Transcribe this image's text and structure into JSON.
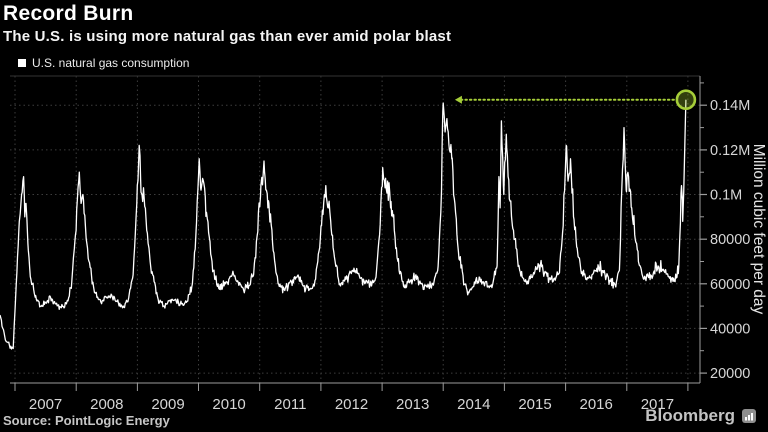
{
  "header": {
    "title": "Record Burn",
    "subtitle": "The U.S. is using more natural gas than ever amid polar blast"
  },
  "legend": {
    "label": "U.S. natural gas consumption",
    "swatch_color": "#ffffff"
  },
  "axes": {
    "y_title": "Million cubic feet per day"
  },
  "footer": {
    "source": "Source: PointLogic Energy",
    "brand": "Bloomberg"
  },
  "colors": {
    "background": "#000000",
    "line": "#ffffff",
    "grid": "#3d3d3d",
    "axis": "#9c9c9c",
    "tick_label": "#d6d6d6",
    "accent_green": "#a6ce39",
    "accent_green_fill": "rgba(160,200,45,0.32)"
  },
  "chart_data": {
    "type": "line",
    "title": "Record Burn",
    "subtitle": "The U.S. is using more natural gas than ever amid polar blast",
    "ylabel": "Million cubic feet per day",
    "grid": "dotted",
    "legend_position": "top-left",
    "x_tick_labels": [
      "2007",
      "2008",
      "2009",
      "2010",
      "2011",
      "2012",
      "2013",
      "2014",
      "2015",
      "2016",
      "2017"
    ],
    "x_year_boundaries": [
      2007,
      2008,
      2009,
      2010,
      2011,
      2012,
      2013,
      2014,
      2015,
      2016,
      2017,
      2018
    ],
    "x_domain": [
      2006.918,
      2018.197
    ],
    "y_domain": [
      15550,
      153100
    ],
    "y_ticks": [
      {
        "value": 20000,
        "label": "20000"
      },
      {
        "value": 40000,
        "label": "40000"
      },
      {
        "value": 60000,
        "label": "60000"
      },
      {
        "value": 80000,
        "label": "80000"
      },
      {
        "value": 100000,
        "label": "0.1M"
      },
      {
        "value": 120000,
        "label": "0.12M"
      },
      {
        "value": 140000,
        "label": "0.14M"
      }
    ],
    "y_minor_ticks": [
      30000,
      50000,
      70000,
      90000,
      110000,
      130000,
      150000
    ],
    "series": [
      {
        "name": "U.S. natural gas consumption",
        "color": "#ffffff",
        "seed": 11,
        "sample_step_years": 0.011,
        "anchors": [
          [
            2006.755,
            46000
          ],
          [
            2006.8,
            40000
          ],
          [
            2006.86,
            34000
          ],
          [
            2006.93,
            32000
          ],
          [
            2006.97,
            31000
          ],
          [
            2007.0,
            48000
          ],
          [
            2007.04,
            72000
          ],
          [
            2007.07,
            88000
          ],
          [
            2007.1,
            97000
          ],
          [
            2007.14,
            108000
          ],
          [
            2007.16,
            90000
          ],
          [
            2007.18,
            96000
          ],
          [
            2007.21,
            78000
          ],
          [
            2007.26,
            62000
          ],
          [
            2007.33,
            54000
          ],
          [
            2007.42,
            50000
          ],
          [
            2007.5,
            51500
          ],
          [
            2007.58,
            54000
          ],
          [
            2007.67,
            51000
          ],
          [
            2007.75,
            49500
          ],
          [
            2007.84,
            51000
          ],
          [
            2007.92,
            58000
          ],
          [
            2007.97,
            76000
          ],
          [
            2008.02,
            98000
          ],
          [
            2008.05,
            110000
          ],
          [
            2008.08,
            96000
          ],
          [
            2008.11,
            100000
          ],
          [
            2008.15,
            86000
          ],
          [
            2008.21,
            70000
          ],
          [
            2008.3,
            56000
          ],
          [
            2008.4,
            52000
          ],
          [
            2008.5,
            54000
          ],
          [
            2008.58,
            55000
          ],
          [
            2008.67,
            52000
          ],
          [
            2008.77,
            50000
          ],
          [
            2008.86,
            54000
          ],
          [
            2008.93,
            64000
          ],
          [
            2008.99,
            96000
          ],
          [
            2009.03,
            122000
          ],
          [
            2009.06,
            101000
          ],
          [
            2009.1,
            103000
          ],
          [
            2009.14,
            90000
          ],
          [
            2009.19,
            76000
          ],
          [
            2009.25,
            64000
          ],
          [
            2009.34,
            53000
          ],
          [
            2009.44,
            50000
          ],
          [
            2009.53,
            52500
          ],
          [
            2009.62,
            53000
          ],
          [
            2009.72,
            51000
          ],
          [
            2009.81,
            52000
          ],
          [
            2009.9,
            60000
          ],
          [
            2009.96,
            84000
          ],
          [
            2010.01,
            116000
          ],
          [
            2010.04,
            102000
          ],
          [
            2010.08,
            106000
          ],
          [
            2010.13,
            92000
          ],
          [
            2010.18,
            80000
          ],
          [
            2010.24,
            66000
          ],
          [
            2010.33,
            58000
          ],
          [
            2010.44,
            60000
          ],
          [
            2010.55,
            64000
          ],
          [
            2010.63,
            61000
          ],
          [
            2010.73,
            58000
          ],
          [
            2010.82,
            59000
          ],
          [
            2010.9,
            64000
          ],
          [
            2010.96,
            82000
          ],
          [
            2011.02,
            104000
          ],
          [
            2011.07,
            115000
          ],
          [
            2011.11,
            102000
          ],
          [
            2011.15,
            96000
          ],
          [
            2011.21,
            78000
          ],
          [
            2011.3,
            60000
          ],
          [
            2011.41,
            57000
          ],
          [
            2011.52,
            61000
          ],
          [
            2011.61,
            63000
          ],
          [
            2011.71,
            59000
          ],
          [
            2011.8,
            57000
          ],
          [
            2011.89,
            59000
          ],
          [
            2011.95,
            70000
          ],
          [
            2012.01,
            86000
          ],
          [
            2012.08,
            104000
          ],
          [
            2012.12,
            94000
          ],
          [
            2012.16,
            88000
          ],
          [
            2012.22,
            72000
          ],
          [
            2012.31,
            60000
          ],
          [
            2012.41,
            62000
          ],
          [
            2012.52,
            66000
          ],
          [
            2012.61,
            64500
          ],
          [
            2012.71,
            61000
          ],
          [
            2012.81,
            60000
          ],
          [
            2012.9,
            63000
          ],
          [
            2012.96,
            82000
          ],
          [
            2013.01,
            112000
          ],
          [
            2013.05,
            103000
          ],
          [
            2013.09,
            106000
          ],
          [
            2013.14,
            94000
          ],
          [
            2013.2,
            84000
          ],
          [
            2013.26,
            70000
          ],
          [
            2013.35,
            59000
          ],
          [
            2013.45,
            60500
          ],
          [
            2013.54,
            63000
          ],
          [
            2013.64,
            60000
          ],
          [
            2013.74,
            58500
          ],
          [
            2013.83,
            60000
          ],
          [
            2013.91,
            66000
          ],
          [
            2013.96,
            92000
          ],
          [
            2014.0,
            141000
          ],
          [
            2014.03,
            128000
          ],
          [
            2014.06,
            134000
          ],
          [
            2014.1,
            120000
          ],
          [
            2014.14,
            116000
          ],
          [
            2014.19,
            96000
          ],
          [
            2014.25,
            74000
          ],
          [
            2014.34,
            60000
          ],
          [
            2014.42,
            56000
          ],
          [
            2014.52,
            60000
          ],
          [
            2014.62,
            62000
          ],
          [
            2014.72,
            58500
          ],
          [
            2014.81,
            60000
          ],
          [
            2014.88,
            68000
          ],
          [
            2014.91,
            108000
          ],
          [
            2014.93,
            94000
          ],
          [
            2014.95,
            133000
          ],
          [
            2014.99,
            100000
          ],
          [
            2015.03,
            127000
          ],
          [
            2015.08,
            98000
          ],
          [
            2015.13,
            86000
          ],
          [
            2015.19,
            76000
          ],
          [
            2015.25,
            66000
          ],
          [
            2015.34,
            61000
          ],
          [
            2015.44,
            63000
          ],
          [
            2015.55,
            69000
          ],
          [
            2015.63,
            66000
          ],
          [
            2015.73,
            62000
          ],
          [
            2015.82,
            62500
          ],
          [
            2015.9,
            65000
          ],
          [
            2015.96,
            86000
          ],
          [
            2016.01,
            122000
          ],
          [
            2016.04,
            106000
          ],
          [
            2016.08,
            116000
          ],
          [
            2016.13,
            90000
          ],
          [
            2016.19,
            76000
          ],
          [
            2016.25,
            66000
          ],
          [
            2016.33,
            62000
          ],
          [
            2016.43,
            64000
          ],
          [
            2016.53,
            68500
          ],
          [
            2016.62,
            65000
          ],
          [
            2016.72,
            61500
          ],
          [
            2016.81,
            59500
          ],
          [
            2016.88,
            66000
          ],
          [
            2016.955,
            130000
          ],
          [
            2016.99,
            102000
          ],
          [
            2017.03,
            108000
          ],
          [
            2017.08,
            94000
          ],
          [
            2017.13,
            82000
          ],
          [
            2017.19,
            70000
          ],
          [
            2017.28,
            62000
          ],
          [
            2017.39,
            64000
          ],
          [
            2017.51,
            68000
          ],
          [
            2017.6,
            66500
          ],
          [
            2017.7,
            62500
          ],
          [
            2017.79,
            61000
          ],
          [
            2017.85,
            68000
          ],
          [
            2017.895,
            104000
          ],
          [
            2017.915,
            88000
          ],
          [
            2017.94,
            112000
          ],
          [
            2017.966,
            142500
          ]
        ],
        "noise_amps": [
          [
            56000,
            1400
          ],
          [
            66000,
            2100
          ],
          [
            85000,
            3200
          ],
          [
            999999,
            5200
          ]
        ]
      }
    ],
    "annotations": {
      "record_point": {
        "t": 2017.966,
        "value": 142500,
        "marker": "circle"
      },
      "record_arrow": {
        "value": 142500,
        "tip_t": 2014.19,
        "end_t": 2017.82,
        "style": "dotted-horizontal-left-arrow"
      }
    }
  }
}
